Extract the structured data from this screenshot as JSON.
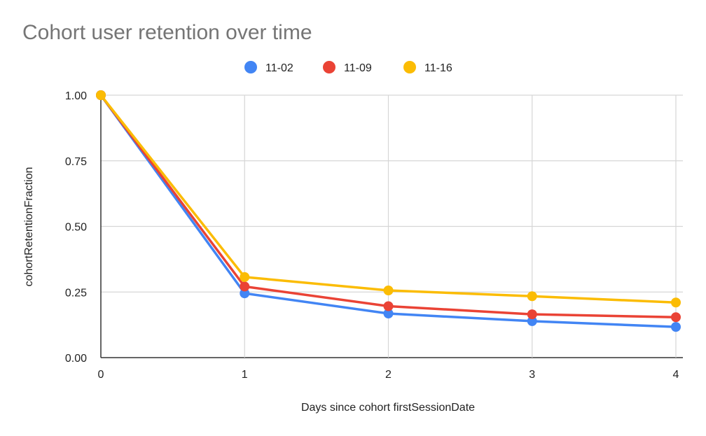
{
  "chart_data": {
    "type": "line",
    "title": "Cohort user retention over time",
    "xlabel": "Days since cohort firstSessionDate",
    "ylabel": "cohortRetentionFraction",
    "x": [
      0,
      1,
      2,
      3,
      4
    ],
    "xticks": [
      "0",
      "1",
      "2",
      "3",
      "4"
    ],
    "yticks": [
      "0.00",
      "0.25",
      "0.50",
      "0.75",
      "1.00"
    ],
    "xlim": [
      0,
      4
    ],
    "ylim": [
      0,
      1
    ],
    "grid": true,
    "legend_position": "top",
    "series": [
      {
        "name": "11-02",
        "color": "#4285f4",
        "values": [
          1.0,
          0.245,
          0.168,
          0.139,
          0.117
        ]
      },
      {
        "name": "11-09",
        "color": "#ea4335",
        "values": [
          1.0,
          0.271,
          0.196,
          0.165,
          0.154
        ]
      },
      {
        "name": "11-16",
        "color": "#fbbc04",
        "values": [
          1.0,
          0.307,
          0.256,
          0.234,
          0.21
        ]
      }
    ]
  }
}
